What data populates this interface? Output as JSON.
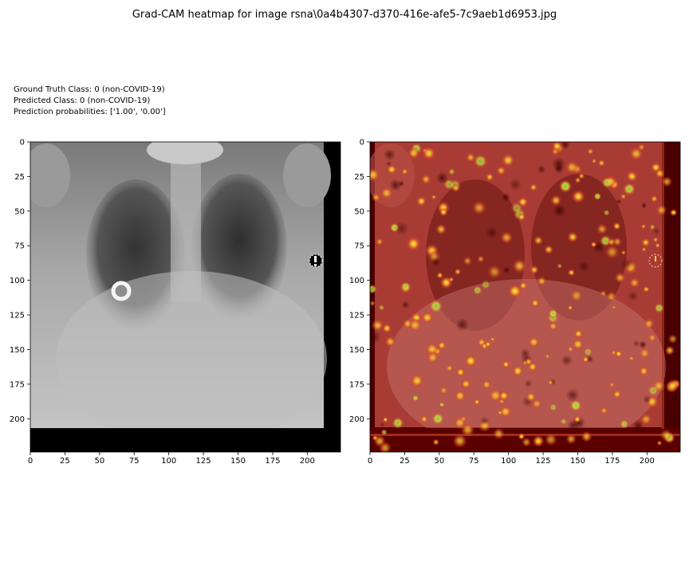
{
  "suptitle": "Grad-CAM heatmap for image rsna\\0a4b4307-d370-416e-afe5-7c9aeb1d6953.jpg",
  "info": {
    "ground_truth": "Ground Truth Class: 0 (non-COVID-19)",
    "predicted": "Predicted Class: 0 (non-COVID-19)",
    "probabilities": "Prediction probabilities: ['1.00', '0.00']"
  },
  "colors": {
    "heat_base": "#b03a2e",
    "heat_dark": "#5a0000",
    "heat_hot": "#ffd23a",
    "heat_green": "#7ad24a",
    "xray_bg": "#000000"
  },
  "chart_data": [
    {
      "type": "image",
      "name": "original",
      "title": "",
      "xlabel": "",
      "ylabel": "",
      "xlim": [
        0,
        224
      ],
      "ylim": [
        224,
        0
      ],
      "xticks": [
        0,
        25,
        50,
        75,
        100,
        125,
        150,
        175,
        200
      ],
      "yticks": [
        0,
        25,
        50,
        75,
        100,
        125,
        150,
        175,
        200
      ]
    },
    {
      "type": "heatmap",
      "name": "gradcam-overlay",
      "title": "",
      "xlabel": "",
      "ylabel": "",
      "xlim": [
        0,
        224
      ],
      "ylim": [
        224,
        0
      ],
      "xticks": [
        0,
        25,
        50,
        75,
        100,
        125,
        150,
        175,
        200
      ],
      "yticks": [
        0,
        25,
        50,
        75,
        100,
        125,
        150,
        175,
        200
      ]
    }
  ]
}
